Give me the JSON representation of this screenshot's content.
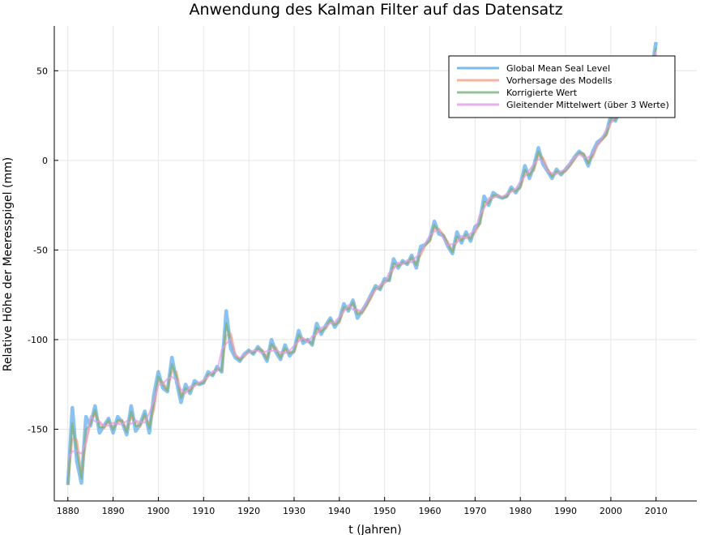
{
  "chart_data": {
    "type": "line",
    "title": "Anwendung des Kalman Filter auf das Datensatz",
    "xlabel": "t (Jahren)",
    "ylabel": "Relative Höhe der Meeresspigel (mm)",
    "xlim": [
      1877,
      2019
    ],
    "ylim": [
      -190,
      75
    ],
    "xticks": [
      1880,
      1890,
      1900,
      1910,
      1920,
      1930,
      1940,
      1950,
      1960,
      1970,
      1980,
      1990,
      2000,
      2010
    ],
    "yticks": [
      50,
      0,
      -50,
      -100,
      -150
    ],
    "grid": true,
    "legend_position": "top-right",
    "series": [
      {
        "name": "Global Mean Seal Level",
        "color": "#56a9f0",
        "key": "gmsl"
      },
      {
        "name": "Vorhersage des Modells",
        "color": "#f0a08a",
        "key": "pred"
      },
      {
        "name": "Korrigierte Wert",
        "color": "#7fb27f",
        "key": "corr"
      },
      {
        "name": "Gleitender Mittelwert (über 3 Werte)",
        "color": "#e49be8",
        "key": "ma"
      }
    ],
    "x": [
      1880,
      1881,
      1882,
      1883,
      1884,
      1885,
      1886,
      1887,
      1888,
      1889,
      1890,
      1891,
      1892,
      1893,
      1894,
      1895,
      1896,
      1897,
      1898,
      1899,
      1900,
      1901,
      1902,
      1903,
      1904,
      1905,
      1906,
      1907,
      1908,
      1909,
      1910,
      1911,
      1912,
      1913,
      1914,
      1915,
      1916,
      1917,
      1918,
      1919,
      1920,
      1921,
      1922,
      1923,
      1924,
      1925,
      1926,
      1927,
      1928,
      1929,
      1930,
      1931,
      1932,
      1933,
      1934,
      1935,
      1936,
      1937,
      1938,
      1939,
      1940,
      1941,
      1942,
      1943,
      1944,
      1945,
      1946,
      1947,
      1948,
      1949,
      1950,
      1951,
      1952,
      1953,
      1954,
      1955,
      1956,
      1957,
      1958,
      1959,
      1960,
      1961,
      1962,
      1963,
      1964,
      1965,
      1966,
      1967,
      1968,
      1969,
      1970,
      1971,
      1972,
      1973,
      1974,
      1975,
      1976,
      1977,
      1978,
      1979,
      1980,
      1981,
      1982,
      1983,
      1984,
      1985,
      1986,
      1987,
      1988,
      1989,
      1990,
      1991,
      1992,
      1993,
      1994,
      1995,
      1996,
      1997,
      1998,
      1999,
      2000,
      2001,
      2002,
      2003,
      2004,
      2005,
      2006,
      2007,
      2008,
      2009,
      2010
    ],
    "y": [
      -181,
      -138,
      -168,
      -180,
      -143,
      -148,
      -137,
      -152,
      -148,
      -144,
      -152,
      -143,
      -146,
      -153,
      -137,
      -151,
      -147,
      -140,
      -152,
      -131,
      -118,
      -127,
      -129,
      -110,
      -123,
      -135,
      -125,
      -130,
      -123,
      -125,
      -124,
      -118,
      -120,
      -115,
      -118,
      -84,
      -105,
      -110,
      -112,
      -108,
      -106,
      -108,
      -104,
      -107,
      -112,
      -100,
      -107,
      -111,
      -103,
      -109,
      -106,
      -95,
      -102,
      -100,
      -103,
      -91,
      -97,
      -92,
      -88,
      -93,
      -89,
      -80,
      -84,
      -78,
      -88,
      -84,
      -80,
      -75,
      -70,
      -72,
      -66,
      -67,
      -55,
      -60,
      -56,
      -58,
      -53,
      -60,
      -48,
      -47,
      -44,
      -34,
      -41,
      -42,
      -48,
      -52,
      -40,
      -46,
      -40,
      -45,
      -37,
      -35,
      -20,
      -25,
      -18,
      -20,
      -21,
      -20,
      -15,
      -18,
      -14,
      -3,
      -10,
      -3,
      7,
      -2,
      -6,
      -10,
      -5,
      -8,
      -5,
      -2,
      2,
      5,
      3,
      -3,
      5,
      10,
      12,
      15,
      25,
      22,
      28,
      25,
      30,
      32,
      40,
      38,
      45,
      50,
      66
    ]
  }
}
